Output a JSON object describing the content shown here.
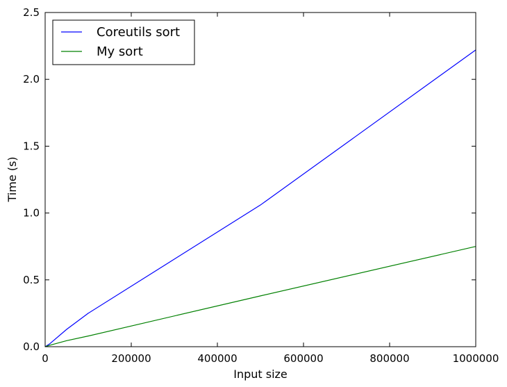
{
  "chart_data": {
    "type": "line",
    "title": "",
    "xlabel": "Input size",
    "ylabel": "Time (s)",
    "xlim": [
      0,
      1000000
    ],
    "ylim": [
      0,
      2.5
    ],
    "xticks": [
      0,
      200000,
      400000,
      600000,
      800000,
      1000000
    ],
    "xtick_labels": [
      "0",
      "200000",
      "400000",
      "600000",
      "800000",
      "1000000"
    ],
    "yticks": [
      0,
      0.5,
      1.0,
      1.5,
      2.0,
      2.5
    ],
    "ytick_labels": [
      "0.0",
      "0.5",
      "1.0",
      "1.5",
      "2.0",
      "2.5"
    ],
    "grid": false,
    "legend_position": "top-left",
    "series": [
      {
        "name": "Coreutils sort",
        "color": "#0000ff",
        "x": [
          0,
          10000,
          50000,
          100000,
          500000,
          1000000
        ],
        "y": [
          0.0,
          0.02,
          0.13,
          0.25,
          1.06,
          2.22
        ]
      },
      {
        "name": "My sort",
        "color": "#008000",
        "x": [
          0,
          10000,
          50000,
          100000,
          500000,
          1000000
        ],
        "y": [
          0.0,
          0.01,
          0.045,
          0.08,
          0.38,
          0.75
        ]
      }
    ]
  }
}
